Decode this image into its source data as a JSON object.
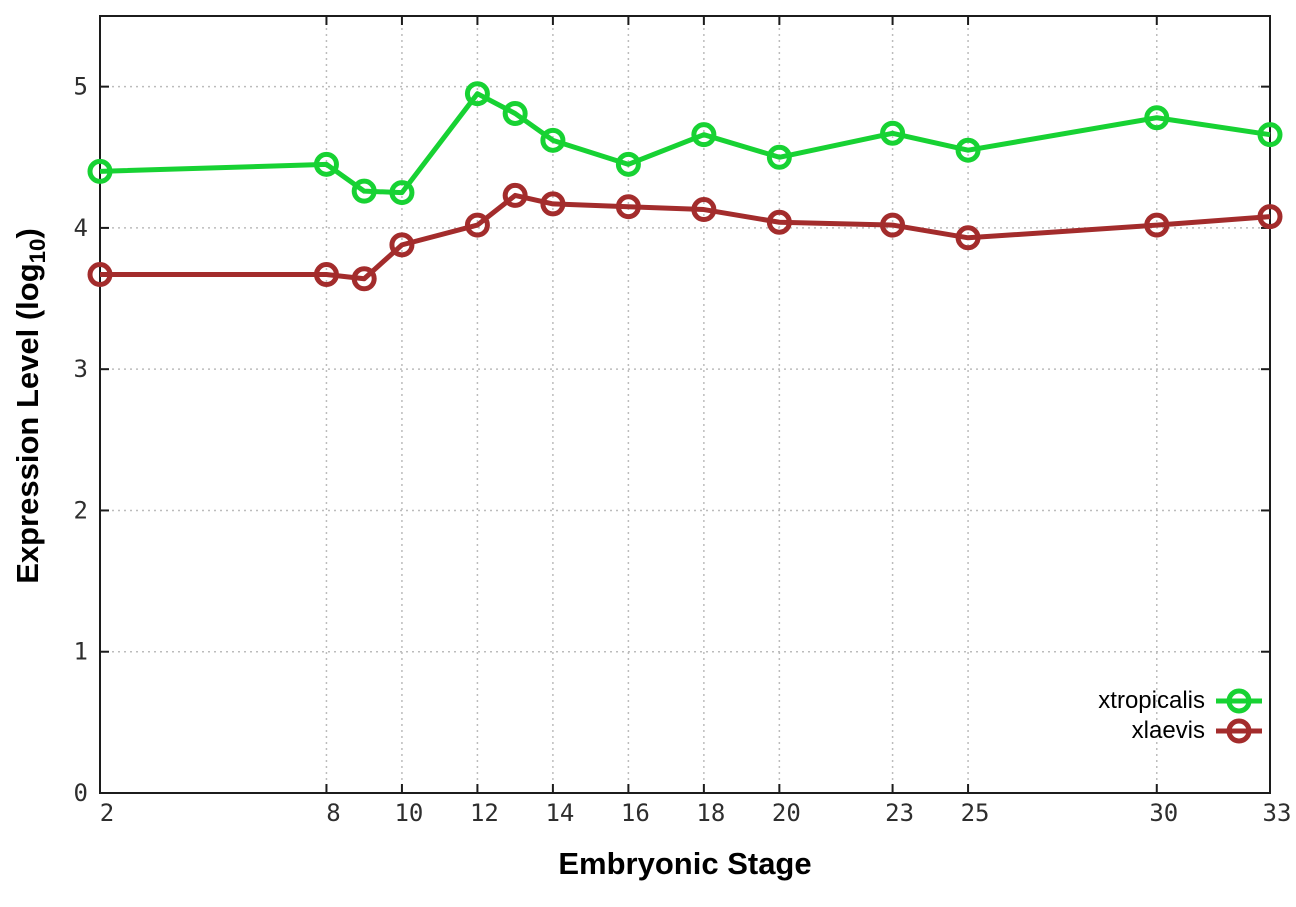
{
  "chart_data": {
    "type": "line",
    "xlabel": "Embryonic Stage",
    "ylabel": "Expression Level (log10)",
    "ylabel_rich": {
      "prefix": "Expression Level (log",
      "subscript": "10",
      "suffix": ")"
    },
    "x": [
      2,
      8,
      9,
      10,
      12,
      13,
      14,
      16,
      18,
      20,
      23,
      25,
      30,
      33
    ],
    "xtick_values": [
      2,
      8,
      10,
      12,
      14,
      16,
      18,
      20,
      23,
      25,
      30,
      33
    ],
    "xtick_labels": [
      "2",
      "8",
      "10",
      "12",
      "14",
      "16",
      "18",
      "20",
      "23",
      "25",
      "30",
      "33"
    ],
    "ytick_values": [
      0,
      1,
      2,
      3,
      4,
      5
    ],
    "ytick_labels": [
      "0",
      "1",
      "2",
      "3",
      "4",
      "5"
    ],
    "xlim": [
      2,
      33
    ],
    "ylim": [
      0,
      5.5
    ],
    "grid": "dotted",
    "legend_position": "inside-bottom-right",
    "series": [
      {
        "name": "xtropicalis",
        "color": "#17d233",
        "marker": "open-circle",
        "values": [
          4.4,
          4.45,
          4.26,
          4.25,
          4.95,
          4.81,
          4.62,
          4.45,
          4.66,
          4.5,
          4.67,
          4.55,
          4.78,
          4.66
        ]
      },
      {
        "name": "xlaevis",
        "color": "#a32c2c",
        "marker": "open-circle",
        "values": [
          3.67,
          3.67,
          3.64,
          3.88,
          4.02,
          4.23,
          4.17,
          4.15,
          4.13,
          4.04,
          4.02,
          3.93,
          4.02,
          4.08
        ]
      }
    ]
  }
}
